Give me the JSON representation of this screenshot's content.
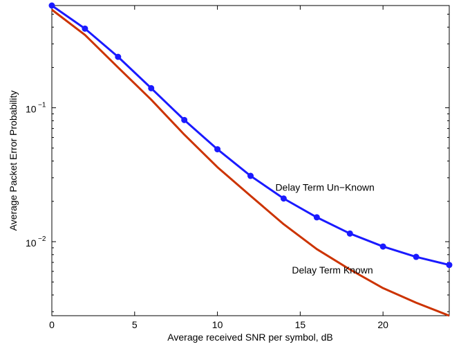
{
  "chart_data": {
    "type": "line",
    "xlabel": "Average received SNR per symbol, dB",
    "ylabel": "Average Packet Error Probability",
    "xlim": [
      0,
      24
    ],
    "ylim": [
      0.0028,
      0.58
    ],
    "yscale": "log",
    "grid": false,
    "x_ticks": [
      0,
      5,
      10,
      15,
      20
    ],
    "x_tick_labels": [
      "0",
      "5",
      "10",
      "15",
      "20"
    ],
    "y_ticks": [
      0.01,
      0.1
    ],
    "y_tick_labels": [
      {
        "base": "10",
        "exp": "−2"
      },
      {
        "base": "10",
        "exp": "−1"
      }
    ],
    "annotations": [
      {
        "text": "Delay Term Un−Known",
        "x": 13.5,
        "y": 0.024
      },
      {
        "text": "Delay Term Known",
        "x": 14.5,
        "y": 0.0058
      }
    ],
    "series": [
      {
        "color": "#1a1aff",
        "marker": "circle",
        "x": [
          0,
          2,
          4,
          6,
          8,
          10,
          12,
          14,
          16,
          18,
          20,
          22,
          24
        ],
        "y": [
          0.58,
          0.39,
          0.24,
          0.14,
          0.081,
          0.049,
          0.031,
          0.021,
          0.0152,
          0.0115,
          0.0092,
          0.0077,
          0.0067
        ]
      },
      {
        "color": "#cc3300",
        "marker": "none",
        "x": [
          0,
          2,
          4,
          6,
          8,
          10,
          12,
          14,
          16,
          18,
          20,
          22,
          24
        ],
        "y": [
          0.54,
          0.35,
          0.2,
          0.115,
          0.063,
          0.036,
          0.022,
          0.0135,
          0.0088,
          0.0062,
          0.0045,
          0.0035,
          0.0028
        ]
      }
    ]
  }
}
